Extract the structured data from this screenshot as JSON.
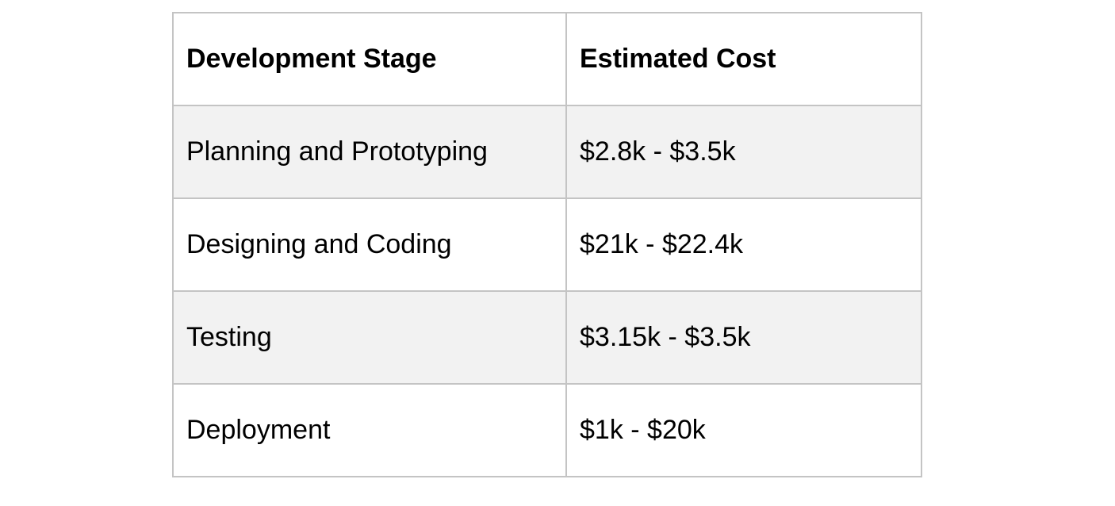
{
  "table": {
    "headers": [
      "Development Stage",
      "Estimated Cost"
    ],
    "rows": [
      {
        "stage": "Planning and Prototyping",
        "cost": "$2.8k - $3.5k"
      },
      {
        "stage": "Designing and Coding",
        "cost": "$21k - $22.4k"
      },
      {
        "stage": "Testing",
        "cost": "$3.15k - $3.5k"
      },
      {
        "stage": "Deployment",
        "cost": "$1k - $20k"
      }
    ],
    "colors": {
      "border": "#c4c4c4",
      "shaded_row": "#f2f2f2",
      "background": "#ffffff"
    }
  }
}
